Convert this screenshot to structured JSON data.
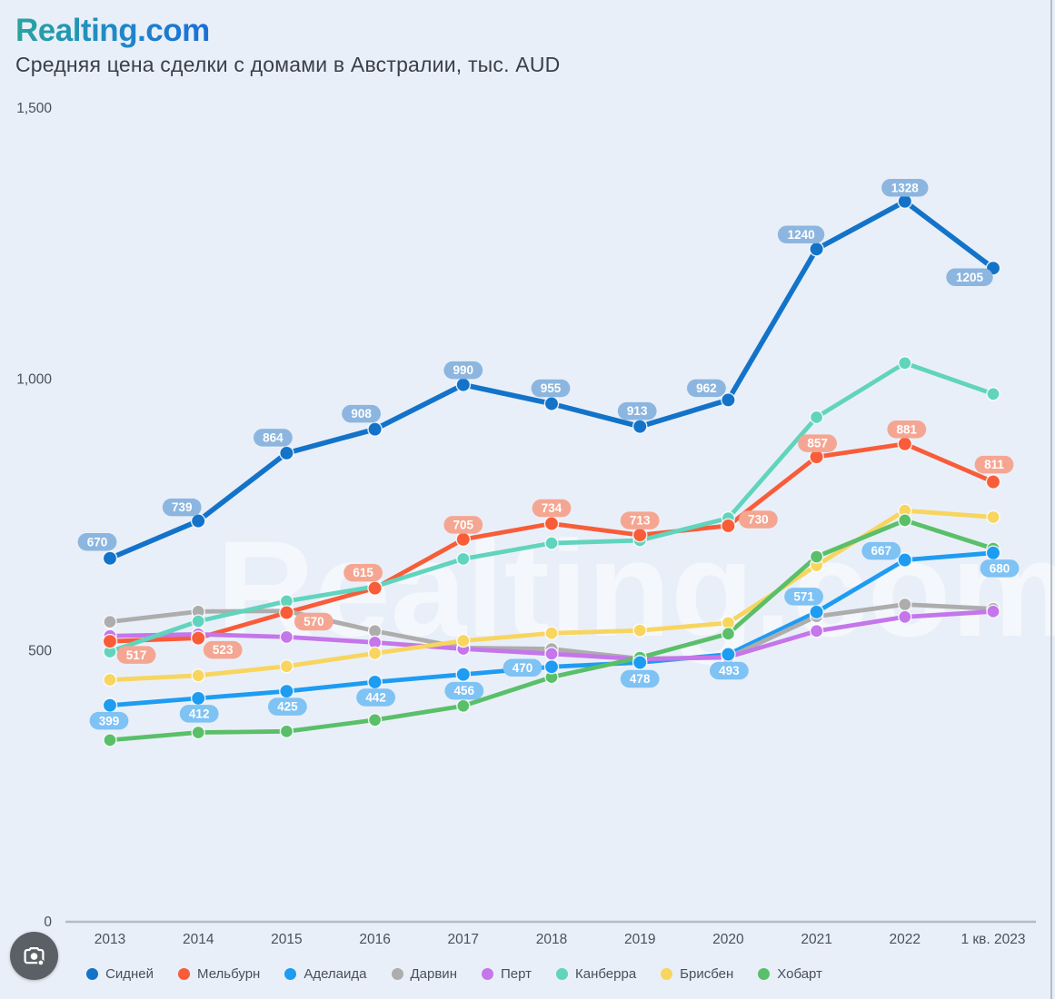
{
  "header": {
    "logo": "Realting.com",
    "title": "Средняя цена сделки с домами в Австралии, тыс. AUD"
  },
  "watermark": "Realting.com",
  "colors": {
    "background": "#E9EFF8",
    "axis_line": "#B6BCC4",
    "axis_text": "#4A505A",
    "title_text": "#3A4049",
    "logo_gradient_start": "#2AA49E",
    "logo_gradient_end": "#1B6FD6",
    "camera_button_bg": "#5B6066"
  },
  "icons": {
    "camera_button": "camera-lens-icon"
  },
  "chart_data": {
    "type": "line",
    "title": "Средняя цена сделки с домами в Австралии, тыс. AUD",
    "xlabel": "",
    "ylabel": "",
    "categories": [
      "2013",
      "2014",
      "2015",
      "2016",
      "2017",
      "2018",
      "2019",
      "2020",
      "2021",
      "2022",
      "1 кв. 2023"
    ],
    "ylim": [
      0,
      1500
    ],
    "yticks": [
      {
        "label": "0",
        "value": 0
      },
      {
        "label": "500",
        "value": 500
      },
      {
        "label": "1,000",
        "value": 1000
      },
      {
        "label": "1,500",
        "value": 1500
      }
    ],
    "grid": false,
    "legend_position": "bottom",
    "series": [
      {
        "name": "Сидней",
        "color": "#1373C9",
        "badge_color": "#8CB6DF",
        "show_labels": true,
        "values": [
          670,
          739,
          864,
          908,
          990,
          955,
          913,
          962,
          1240,
          1328,
          1205
        ]
      },
      {
        "name": "Мельбурн",
        "color": "#F85C39",
        "badge_color": "#F5A692",
        "show_labels": true,
        "values": [
          517,
          523,
          570,
          615,
          705,
          734,
          713,
          730,
          857,
          881,
          811
        ]
      },
      {
        "name": "Аделаида",
        "color": "#1E9CF2",
        "badge_color": "#7FC2F4",
        "show_labels": true,
        "values": [
          399,
          412,
          425,
          442,
          456,
          470,
          478,
          493,
          571,
          667,
          680
        ]
      },
      {
        "name": "Дарвин",
        "color": "#ADADAD",
        "show_labels": false,
        "values": [
          553,
          572,
          573,
          536,
          505,
          503,
          485,
          487,
          563,
          585,
          577
        ]
      },
      {
        "name": "Перт",
        "color": "#C476EA",
        "show_labels": false,
        "values": [
          527,
          530,
          525,
          515,
          503,
          494,
          484,
          488,
          536,
          562,
          572
        ]
      },
      {
        "name": "Канберра",
        "color": "#61D4BD",
        "show_labels": false,
        "values": [
          498,
          554,
          591,
          618,
          669,
          698,
          703,
          744,
          930,
          1030,
          973
        ]
      },
      {
        "name": "Брисбен",
        "color": "#F7D55F",
        "show_labels": false,
        "values": [
          446,
          454,
          471,
          495,
          518,
          532,
          537,
          551,
          657,
          758,
          746
        ]
      },
      {
        "name": "Хобарт",
        "color": "#5ABF69",
        "show_labels": false,
        "values": [
          335,
          349,
          351,
          372,
          398,
          451,
          487,
          531,
          673,
          740,
          688
        ]
      }
    ]
  }
}
